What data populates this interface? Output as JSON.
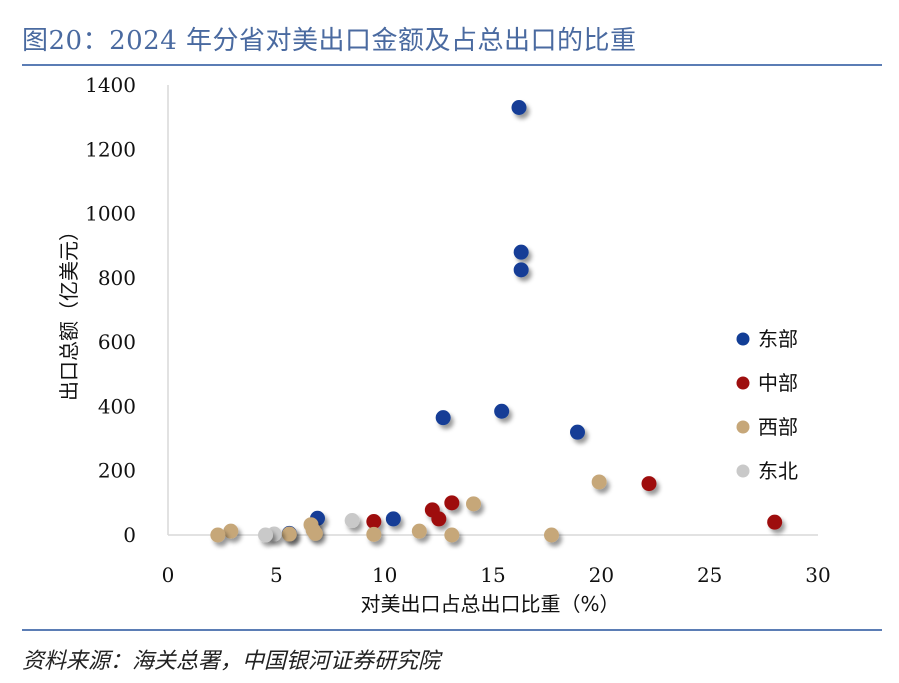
{
  "header": {
    "title": "图20：2024 年分省对美出口金额及占总出口的比重"
  },
  "footer": {
    "source": "资料来源：海关总署，中国银河证券研究院"
  },
  "colors": {
    "东部": "#123e96",
    "中部": "#9e0f0f",
    "西部": "#c6a779",
    "东北": "#c9c9c9",
    "header_rule": "#5b7db5",
    "title_text": "#4a6aa0"
  },
  "chart_data": {
    "type": "scatter",
    "xlabel": "对美出口占总出口比重（%）",
    "ylabel": "出口总额（亿美元）",
    "xlim": [
      0,
      30
    ],
    "ylim": [
      0,
      1400
    ],
    "xticks": [
      0,
      5,
      10,
      15,
      20,
      25,
      30
    ],
    "yticks": [
      0,
      200,
      400,
      600,
      800,
      1000,
      1200,
      1400
    ],
    "grid": false,
    "legend_position": "right",
    "series": [
      {
        "name": "东部",
        "points": [
          {
            "x": 16.2,
            "y": 1330
          },
          {
            "x": 16.3,
            "y": 880
          },
          {
            "x": 16.3,
            "y": 825
          },
          {
            "x": 12.7,
            "y": 365
          },
          {
            "x": 15.4,
            "y": 385
          },
          {
            "x": 18.9,
            "y": 320
          },
          {
            "x": 10.4,
            "y": 50
          },
          {
            "x": 6.9,
            "y": 52
          },
          {
            "x": 5.6,
            "y": 5
          }
        ]
      },
      {
        "name": "中部",
        "points": [
          {
            "x": 28.0,
            "y": 40
          },
          {
            "x": 22.2,
            "y": 160
          },
          {
            "x": 13.1,
            "y": 100
          },
          {
            "x": 12.2,
            "y": 78
          },
          {
            "x": 12.5,
            "y": 50
          },
          {
            "x": 9.5,
            "y": 42
          }
        ]
      },
      {
        "name": "西部",
        "points": [
          {
            "x": 19.9,
            "y": 165
          },
          {
            "x": 14.1,
            "y": 97
          },
          {
            "x": 17.7,
            "y": 0
          },
          {
            "x": 13.1,
            "y": 0
          },
          {
            "x": 11.6,
            "y": 12
          },
          {
            "x": 9.5,
            "y": 2
          },
          {
            "x": 6.6,
            "y": 32
          },
          {
            "x": 6.7,
            "y": 15
          },
          {
            "x": 6.8,
            "y": 5
          },
          {
            "x": 5.6,
            "y": 3
          },
          {
            "x": 2.9,
            "y": 12
          },
          {
            "x": 2.3,
            "y": 0
          }
        ]
      },
      {
        "name": "东北",
        "points": [
          {
            "x": 8.5,
            "y": 45
          },
          {
            "x": 4.9,
            "y": 3
          },
          {
            "x": 4.5,
            "y": 0
          }
        ]
      }
    ]
  }
}
